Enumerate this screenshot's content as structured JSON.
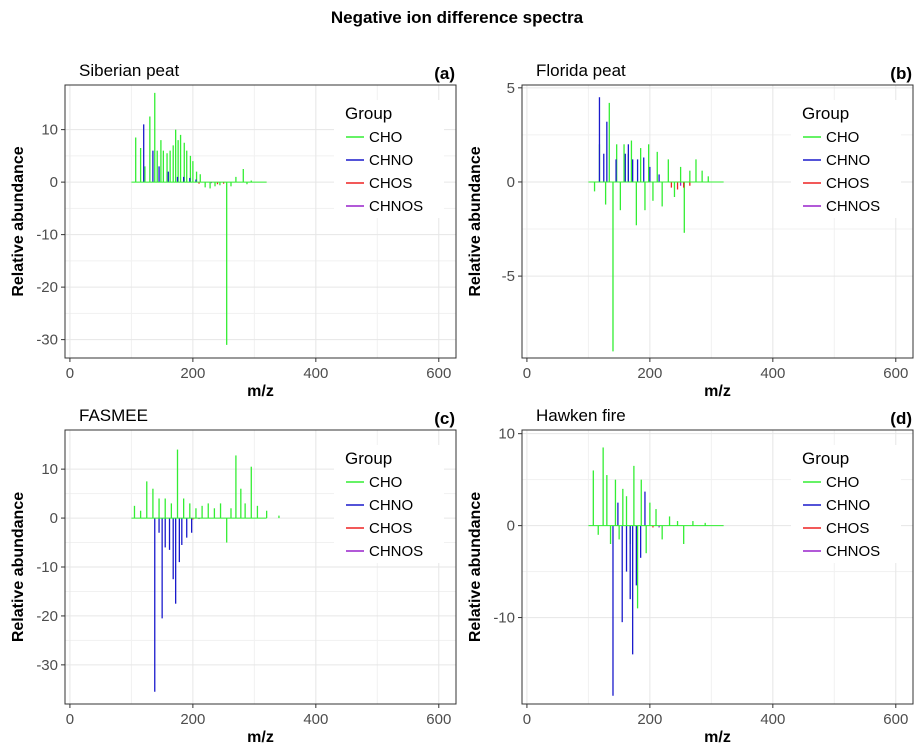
{
  "figure_title": "Negative ion difference spectra",
  "colors": {
    "CHO": "#33ee33",
    "CHNO": "#1a1acc",
    "CHOS": "#ee2222",
    "CHNOS": "#9922cc",
    "grid": "#e6e6e6",
    "axis": "#333333"
  },
  "chart_data": [
    {
      "type": "bar",
      "title": "Siberian peat",
      "tag": "(a)",
      "xlabel": "m/z",
      "ylabel": "Relative abundance",
      "xlim": [
        -8,
        628
      ],
      "ylim": [
        -33.5,
        18.5
      ],
      "xticks": [
        0,
        200,
        400,
        600
      ],
      "yticks": [
        10,
        0,
        -10,
        -20,
        -30
      ],
      "legend": {
        "title": "Group",
        "entries": [
          "CHO",
          "CHNO",
          "CHOS",
          "CHNOS"
        ],
        "position": "right"
      },
      "series": [
        {
          "name": "CHO",
          "x": [
            107,
            115,
            122,
            130,
            138,
            142,
            148,
            152,
            158,
            163,
            168,
            172,
            176,
            180,
            186,
            190,
            196,
            200,
            206,
            212,
            220,
            228,
            236,
            244,
            255,
            262,
            270,
            282,
            288,
            295
          ],
          "y": [
            8.5,
            6.5,
            3,
            12.5,
            17,
            6,
            8,
            6,
            5.5,
            6,
            7,
            10,
            8,
            9,
            7.5,
            6,
            5,
            4,
            2,
            1.5,
            -1,
            -1.2,
            -0.8,
            -0.6,
            -31,
            -0.8,
            1,
            2.5,
            -0.4,
            0.3
          ]
        },
        {
          "name": "CHNO",
          "x": [
            120,
            135,
            145,
            160,
            175,
            185,
            195,
            205
          ],
          "y": [
            11,
            6,
            3,
            2,
            1,
            1,
            0.8,
            0.5
          ]
        },
        {
          "name": "CHOS",
          "x": [
            210,
            240,
            250
          ],
          "y": [
            -0.3,
            -0.4,
            -0.3
          ]
        },
        {
          "name": "CHNOS",
          "x": [
            230
          ],
          "y": [
            -0.2
          ]
        }
      ]
    },
    {
      "type": "bar",
      "title": "Florida peat",
      "tag": "(b)",
      "xlabel": "m/z",
      "ylabel": "Relative abundance",
      "xlim": [
        -8,
        628
      ],
      "ylim": [
        -9.35,
        5.15
      ],
      "xticks": [
        0,
        200,
        400,
        600
      ],
      "yticks": [
        5,
        0,
        -5
      ],
      "legend": {
        "title": "Group",
        "entries": [
          "CHO",
          "CHNO",
          "CHOS",
          "CHNOS"
        ],
        "position": "right"
      },
      "series": [
        {
          "name": "CHO",
          "x": [
            110,
            118,
            128,
            134,
            140,
            146,
            152,
            158,
            165,
            170,
            178,
            185,
            192,
            198,
            205,
            212,
            220,
            230,
            240,
            250,
            256,
            265,
            275,
            285,
            295
          ],
          "y": [
            -0.5,
            2,
            -1.2,
            4.2,
            -9,
            2,
            -1.5,
            2,
            1.5,
            2.2,
            -2.3,
            1.8,
            -1.5,
            2,
            -1,
            1.6,
            -1.3,
            1.2,
            -0.8,
            0.8,
            -2.7,
            0.6,
            1.2,
            0.6,
            0.3
          ]
        },
        {
          "name": "CHNO",
          "x": [
            118,
            125,
            130,
            145,
            160,
            165,
            172,
            180,
            190,
            200,
            215
          ],
          "y": [
            4.5,
            1.5,
            3.2,
            1.2,
            1.5,
            2,
            1.2,
            1.2,
            1.3,
            0.8,
            0.4
          ]
        },
        {
          "name": "CHOS",
          "x": [
            235,
            245,
            255,
            265
          ],
          "y": [
            -0.3,
            -0.4,
            -0.3,
            -0.2
          ]
        },
        {
          "name": "CHNOS",
          "x": [
            250
          ],
          "y": [
            -0.2
          ]
        }
      ]
    },
    {
      "type": "bar",
      "title": "FASMEE",
      "tag": "(c)",
      "xlabel": "m/z",
      "ylabel": "Relative abundance",
      "xlim": [
        -8,
        628
      ],
      "ylim": [
        -38,
        18
      ],
      "xticks": [
        0,
        200,
        400,
        600
      ],
      "yticks": [
        10,
        0,
        -10,
        -20,
        -30
      ],
      "legend": {
        "title": "Group",
        "entries": [
          "CHO",
          "CHNO",
          "CHOS",
          "CHNOS"
        ],
        "position": "right"
      },
      "series": [
        {
          "name": "CHO",
          "x": [
            105,
            115,
            125,
            135,
            145,
            155,
            165,
            175,
            185,
            195,
            205,
            215,
            225,
            235,
            245,
            255,
            262,
            270,
            278,
            285,
            295,
            305,
            320,
            340
          ],
          "y": [
            2.5,
            1.5,
            7.5,
            6,
            4,
            4,
            3,
            14,
            4,
            3,
            2,
            2.5,
            3,
            2,
            3,
            -5,
            2,
            12.8,
            6,
            3,
            10.5,
            2.5,
            1.5,
            0.5
          ]
        },
        {
          "name": "CHNO",
          "x": [
            138,
            145,
            150,
            155,
            162,
            168,
            172,
            178,
            182,
            190,
            198
          ],
          "y": [
            -35.5,
            -3,
            -20.5,
            -6,
            -6.5,
            -12.5,
            -17.5,
            -9,
            -5.5,
            -4,
            -3
          ]
        },
        {
          "name": "CHOS",
          "x": [
            200
          ],
          "y": [
            -0.3
          ]
        },
        {
          "name": "CHNOS",
          "x": [
            210
          ],
          "y": [
            -0.2
          ]
        }
      ]
    },
    {
      "type": "bar",
      "title": "Hawken fire",
      "tag": "(d)",
      "xlabel": "m/z",
      "ylabel": "Relative abundance",
      "xlim": [
        -8,
        628
      ],
      "ylim": [
        -19.4,
        10.4
      ],
      "xticks": [
        0,
        200,
        400,
        600
      ],
      "yticks": [
        10,
        0,
        -10
      ],
      "legend": {
        "title": "Group",
        "entries": [
          "CHO",
          "CHNO",
          "CHOS",
          "CHNOS"
        ],
        "position": "right"
      },
      "series": [
        {
          "name": "CHO",
          "x": [
            108,
            116,
            124,
            130,
            136,
            144,
            150,
            156,
            162,
            168,
            174,
            180,
            186,
            194,
            200,
            210,
            220,
            232,
            245,
            255,
            270,
            290
          ],
          "y": [
            6,
            -1,
            8.5,
            5.5,
            -2,
            5,
            -1.5,
            4,
            3.2,
            -2,
            6.5,
            -9,
            5,
            -3,
            2.5,
            1.8,
            -1.5,
            1,
            0.5,
            -2,
            0.5,
            0.3
          ]
        },
        {
          "name": "CHNO",
          "x": [
            140,
            148,
            155,
            162,
            168,
            172,
            178,
            185,
            192
          ],
          "y": [
            -18.5,
            2.5,
            -10.5,
            -5,
            -8,
            -14,
            -6.5,
            -3.5,
            3.7
          ]
        },
        {
          "name": "CHOS",
          "x": [
            205
          ],
          "y": [
            -0.2
          ]
        },
        {
          "name": "CHNOS",
          "x": [
            215
          ],
          "y": [
            -0.2
          ]
        }
      ]
    }
  ]
}
